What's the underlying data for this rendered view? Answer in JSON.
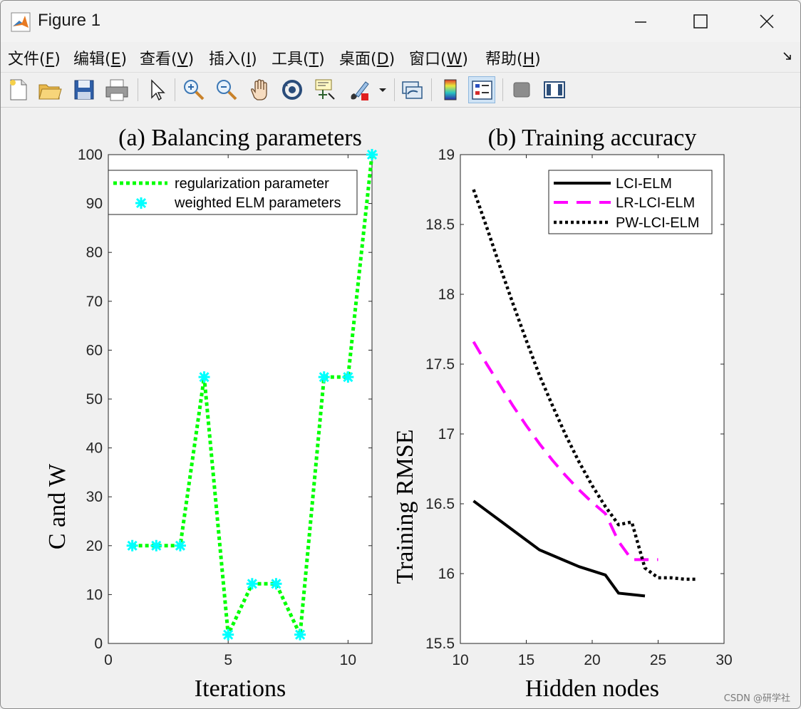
{
  "window": {
    "title": "Figure 1",
    "watermark": "CSDN @研学社"
  },
  "menu": [
    {
      "label": "文件",
      "mnemonic": "F"
    },
    {
      "label": "编辑",
      "mnemonic": "E"
    },
    {
      "label": "查看",
      "mnemonic": "V"
    },
    {
      "label": "插入",
      "mnemonic": "I"
    },
    {
      "label": "工具",
      "mnemonic": "T"
    },
    {
      "label": "桌面",
      "mnemonic": "D"
    },
    {
      "label": "窗口",
      "mnemonic": "W"
    },
    {
      "label": "帮助",
      "mnemonic": "H"
    }
  ],
  "toolbar": [
    {
      "name": "new-figure-icon"
    },
    {
      "name": "open-file-icon"
    },
    {
      "name": "save-icon"
    },
    {
      "name": "print-icon"
    },
    {
      "name": "pointer-icon"
    },
    {
      "name": "zoom-in-icon"
    },
    {
      "name": "zoom-out-icon"
    },
    {
      "name": "pan-hand-icon"
    },
    {
      "name": "rotate-3d-icon"
    },
    {
      "name": "data-cursor-icon"
    },
    {
      "name": "brush-icon"
    },
    {
      "name": "link-plot-icon"
    },
    {
      "name": "colorbar-icon"
    },
    {
      "name": "legend-icon"
    },
    {
      "name": "hide-plot-tools-icon"
    },
    {
      "name": "show-plot-tools-icon"
    }
  ],
  "colors": {
    "green": "#00ff00",
    "cyan": "#00ffff",
    "magenta": "#ff00ff",
    "black": "#000000"
  },
  "chart_data": [
    {
      "type": "line",
      "title": "(a) Balancing parameters",
      "xlabel": "Iterations",
      "ylabel": "C and W",
      "xlim": [
        0,
        11
      ],
      "ylim": [
        0,
        100
      ],
      "xticks": [
        0,
        5,
        10
      ],
      "yticks": [
        0,
        10,
        20,
        30,
        40,
        50,
        60,
        70,
        80,
        90,
        100
      ],
      "legend_position": "top-left",
      "series": [
        {
          "name": "regularization parameter",
          "style": "dotted",
          "color": "#00ff00",
          "x": [
            1,
            2,
            3,
            4,
            5,
            6,
            7,
            8,
            9,
            10,
            11
          ],
          "values": [
            20,
            20,
            20,
            54.5,
            1.8,
            12.2,
            12.2,
            1.8,
            54.5,
            54.5,
            100
          ]
        },
        {
          "name": "weighted ELM parameters",
          "style": "markers",
          "color": "#00ffff",
          "x": [
            1,
            2,
            3,
            4,
            5,
            6,
            7,
            8,
            9,
            10,
            11
          ],
          "values": [
            20,
            20,
            20,
            54.5,
            1.8,
            12.2,
            12.2,
            1.8,
            54.5,
            54.5,
            100
          ]
        }
      ]
    },
    {
      "type": "line",
      "title": "(b) Training accuracy",
      "xlabel": "Hidden nodes",
      "ylabel": "Training RMSE",
      "xlim": [
        10,
        30
      ],
      "ylim": [
        15.5,
        19
      ],
      "xticks": [
        10,
        15,
        20,
        25,
        30
      ],
      "yticks": [
        15.5,
        16,
        16.5,
        17,
        17.5,
        18,
        18.5,
        19
      ],
      "legend_position": "top-right",
      "series": [
        {
          "name": "LCI-ELM",
          "style": "solid",
          "color": "#000000",
          "x": [
            11,
            12,
            13,
            14,
            15,
            16,
            17,
            18,
            19,
            20,
            21,
            22,
            23,
            24
          ],
          "values": [
            16.52,
            16.45,
            16.38,
            16.31,
            16.24,
            16.17,
            16.13,
            16.09,
            16.05,
            16.02,
            15.99,
            15.86,
            15.85,
            15.84
          ]
        },
        {
          "name": "LR-LCI-ELM",
          "style": "dashed",
          "color": "#ff00ff",
          "x": [
            11,
            12,
            13,
            14,
            15,
            16,
            17,
            18,
            19,
            20,
            21,
            22,
            23,
            24,
            25
          ],
          "values": [
            17.66,
            17.5,
            17.35,
            17.2,
            17.06,
            16.93,
            16.81,
            16.7,
            16.6,
            16.51,
            16.43,
            16.23,
            16.1,
            16.1,
            16.1
          ]
        },
        {
          "name": "PW-LCI-ELM",
          "style": "dotted",
          "color": "#000000",
          "x": [
            11,
            12,
            13,
            14,
            15,
            16,
            17,
            18,
            19,
            20,
            21,
            22,
            23,
            24,
            25,
            26,
            27,
            28
          ],
          "values": [
            18.75,
            18.48,
            18.2,
            17.93,
            17.67,
            17.42,
            17.2,
            16.99,
            16.8,
            16.63,
            16.48,
            16.35,
            16.37,
            16.04,
            15.97,
            15.97,
            15.96,
            15.96
          ]
        }
      ]
    }
  ]
}
